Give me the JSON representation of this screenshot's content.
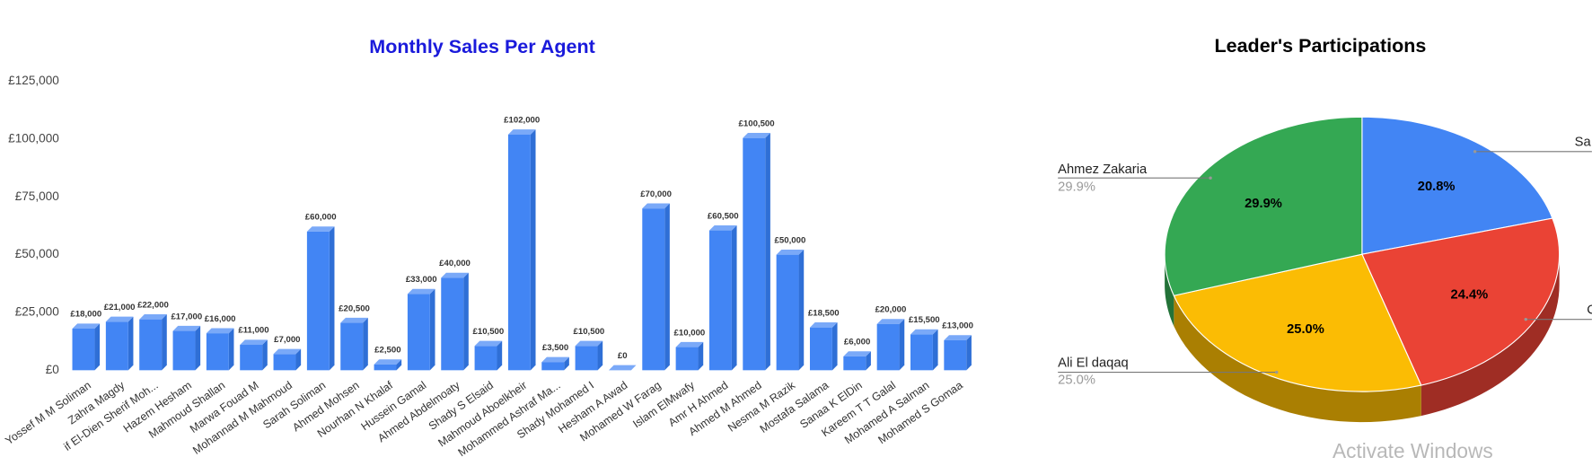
{
  "chart_data": [
    {
      "type": "bar",
      "title": "Monthly Sales Per Agent",
      "categories": [
        "Yossef M M Soliman",
        "Zahra Magdy",
        "if El-Dien Sherif Moh...",
        "Hazem Hesham",
        "Mahmoud Shallan",
        "Marwa Fouad M",
        "Mohannad M Mahmoud",
        "Sarah Soliman",
        "Ahmed Mohsen",
        "Nourhan N Khalaf",
        "Hussein Gamal",
        "Ahmed Abdelmoaty",
        "Shady S Elsaid",
        "Mahmoud Aboelkheir",
        "Mohammed Ashraf Ma...",
        "Shady Mohamed I",
        "Hesham A Awad",
        "Mohamed W Farag",
        "Islam ElMwafy",
        "Amr H Ahmed",
        "Ahmed M Ahmed",
        "Nesma M Razik",
        "Mostafa Salama",
        "Sanaa K ElDin",
        "Kareem T T Galal",
        "Mohamed A Salman",
        "Mohamed S Gomaa"
      ],
      "values": [
        18000,
        21000,
        22000,
        17000,
        16000,
        11000,
        7000,
        60000,
        20500,
        2500,
        33000,
        40000,
        10500,
        102000,
        3500,
        10500,
        0,
        70000,
        10000,
        60500,
        100500,
        50000,
        18500,
        6000,
        20000,
        15500,
        13000
      ],
      "value_labels": [
        "£18,000",
        "£21,000",
        "£22,000",
        "£17,000",
        "£16,000",
        "£11,000",
        "£7,000",
        "£60,000",
        "£20,500",
        "£2,500",
        "£33,000",
        "£40,000",
        "£10,500",
        "£102,000",
        "£3,500",
        "£10,500",
        "£0",
        "£70,000",
        "£10,000",
        "£60,500",
        "£100,500",
        "£50,000",
        "£18,500",
        "£6,000",
        "£20,000",
        "£15,500",
        "£13,000"
      ],
      "color": "#4285f4",
      "ylim": [
        0,
        125000
      ],
      "yticks": [
        {
          "value": 0,
          "label": "£0"
        },
        {
          "value": 25000,
          "label": "£25,000"
        },
        {
          "value": 50000,
          "label": "£50,000"
        },
        {
          "value": 75000,
          "label": "£75,000"
        },
        {
          "value": 100000,
          "label": "£100,000"
        },
        {
          "value": 125000,
          "label": "£125,000"
        }
      ],
      "grid": false
    },
    {
      "type": "pie",
      "title": "Leader's Participations",
      "categories": [
        "Sa",
        "C",
        "Ali  El daqaq",
        "Ahmez Zakaria"
      ],
      "values": [
        20.8,
        24.4,
        25.0,
        29.9
      ],
      "value_labels": [
        "20.8%",
        "24.4%",
        "25.0%",
        "29.9%"
      ],
      "colors": [
        "#4285f4",
        "#ea4335",
        "#fbbc04",
        "#34a853"
      ]
    }
  ],
  "watermark": "Activate Windows"
}
